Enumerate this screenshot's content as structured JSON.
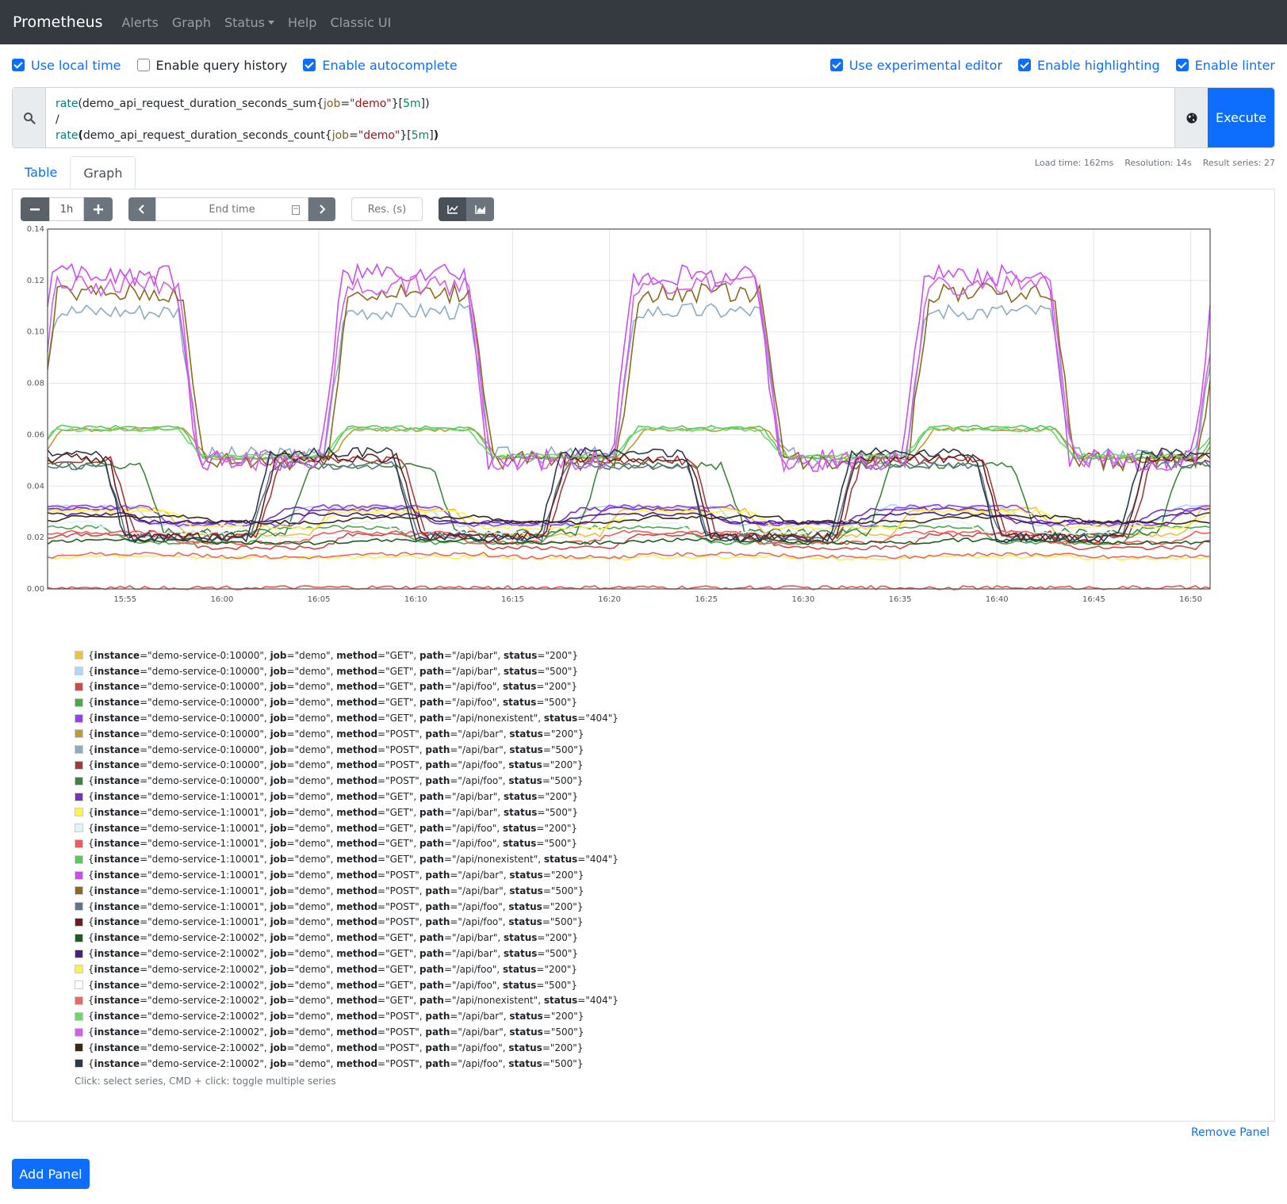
{
  "navbar": {
    "brand": "Prometheus",
    "links": [
      "Alerts",
      "Graph",
      "Status",
      "Help",
      "Classic UI"
    ]
  },
  "options": {
    "left": [
      {
        "label": "Use local time",
        "checked": true
      },
      {
        "label": "Enable query history",
        "checked": false
      },
      {
        "label": "Enable autocomplete",
        "checked": true
      }
    ],
    "right": [
      {
        "label": "Use experimental editor",
        "checked": true
      },
      {
        "label": "Enable highlighting",
        "checked": true
      },
      {
        "label": "Enable linter",
        "checked": true
      }
    ]
  },
  "query": {
    "line1": {
      "fn": "rate",
      "metric": "demo_api_request_duration_seconds_sum",
      "label": "job",
      "value": "\"demo\"",
      "range": "5m"
    },
    "line2": "/",
    "line3": {
      "fn": "rate",
      "metric": "demo_api_request_duration_seconds_count",
      "label": "job",
      "value": "\"demo\"",
      "range": "5m"
    },
    "execute": "Execute"
  },
  "tabs": [
    "Table",
    "Graph"
  ],
  "active_tab": "Graph",
  "stats": {
    "load_time": "Load time: 162ms",
    "resolution": "Resolution: 14s",
    "result_series": "Result series: 27"
  },
  "controls": {
    "range": "1h",
    "end_time_placeholder": "End time",
    "res_placeholder": "Res. (s)"
  },
  "legend_hint": "Click: select series, CMD + click: toggle multiple series",
  "remove_panel": "Remove Panel",
  "add_panel": "Add Panel",
  "chart_data": {
    "type": "line",
    "ylim": [
      0,
      0.14
    ],
    "yticks": [
      "0.00",
      "0.02",
      "0.04",
      "0.06",
      "0.08",
      "0.10",
      "0.12",
      "0.14"
    ],
    "xlim": [
      "15:51",
      "16:51"
    ],
    "xticks": [
      "15:55",
      "16:00",
      "16:05",
      "16:10",
      "16:15",
      "16:20",
      "16:25",
      "16:30",
      "16:35",
      "16:40",
      "16:45",
      "16:50"
    ],
    "grid": true,
    "cycle_minutes": 7.5,
    "series": [
      {
        "labels": {
          "instance": "demo-service-0:10000",
          "job": "demo",
          "method": "GET",
          "path": "/api/bar",
          "status": "200"
        },
        "color": "#edc240",
        "low": 0.021,
        "high": 0.031,
        "phase": 0.2
      },
      {
        "labels": {
          "instance": "demo-service-0:10000",
          "job": "demo",
          "method": "GET",
          "path": "/api/bar",
          "status": "500"
        },
        "color": "#afd8f8",
        "low": 0.025,
        "high": 0.032,
        "phase": 0.4
      },
      {
        "labels": {
          "instance": "demo-service-0:10000",
          "job": "demo",
          "method": "GET",
          "path": "/api/foo",
          "status": "200"
        },
        "color": "#cb4b4b",
        "low": 0.016,
        "high": 0.021,
        "phase": 0.1
      },
      {
        "labels": {
          "instance": "demo-service-0:10000",
          "job": "demo",
          "method": "GET",
          "path": "/api/foo",
          "status": "500"
        },
        "color": "#4da74d",
        "low": 0.018,
        "high": 0.024,
        "phase": 0.6
      },
      {
        "labels": {
          "instance": "demo-service-0:10000",
          "job": "demo",
          "method": "GET",
          "path": "/api/nonexistent",
          "status": "404"
        },
        "color": "#9440ed",
        "low": 0.025,
        "high": 0.032,
        "phase": 0.3
      },
      {
        "labels": {
          "instance": "demo-service-0:10000",
          "job": "demo",
          "method": "POST",
          "path": "/api/bar",
          "status": "200"
        },
        "color": "#bd9b33",
        "low": 0.051,
        "high": 0.062,
        "phase": 0.05
      },
      {
        "labels": {
          "instance": "demo-service-0:10000",
          "job": "demo",
          "method": "POST",
          "path": "/api/bar",
          "status": "500"
        },
        "color": "#8cacc6",
        "low": 0.052,
        "high": 0.108,
        "phase": 0.1
      },
      {
        "labels": {
          "instance": "demo-service-0:10000",
          "job": "demo",
          "method": "POST",
          "path": "/api/foo",
          "status": "200"
        },
        "color": "#a23c3c",
        "low": 0.021,
        "high": 0.05,
        "phase": 0.55
      },
      {
        "labels": {
          "instance": "demo-service-0:10000",
          "job": "demo",
          "method": "POST",
          "path": "/api/foo",
          "status": "500"
        },
        "color": "#3d853d",
        "low": 0.022,
        "high": 0.048,
        "phase": 0.35
      },
      {
        "labels": {
          "instance": "demo-service-1:10001",
          "job": "demo",
          "method": "GET",
          "path": "/api/bar",
          "status": "200"
        },
        "color": "#7633bd",
        "low": 0.026,
        "high": 0.031,
        "phase": 0.5
      },
      {
        "labels": {
          "instance": "demo-service-1:10001",
          "job": "demo",
          "method": "GET",
          "path": "/api/bar",
          "status": "500"
        },
        "color": "#fff34e",
        "low": 0.024,
        "high": 0.03,
        "phase": 0.15
      },
      {
        "labels": {
          "instance": "demo-service-1:10001",
          "job": "demo",
          "method": "GET",
          "path": "/api/foo",
          "status": "200"
        },
        "color": "#e0f4f7",
        "low": 0.022,
        "high": 0.026,
        "phase": 0.7
      },
      {
        "labels": {
          "instance": "demo-service-1:10001",
          "job": "demo",
          "method": "GET",
          "path": "/api/foo",
          "status": "500"
        },
        "color": "#f05b5b",
        "low": 0.018,
        "high": 0.022,
        "phase": 0.25
      },
      {
        "labels": {
          "instance": "demo-service-1:10001",
          "job": "demo",
          "method": "GET",
          "path": "/api/nonexistent",
          "status": "404"
        },
        "color": "#5cc85c",
        "low": 0.051,
        "high": 0.063,
        "phase": 0.08
      },
      {
        "labels": {
          "instance": "demo-service-1:10001",
          "job": "demo",
          "method": "POST",
          "path": "/api/bar",
          "status": "200"
        },
        "color": "#c94fef",
        "low": 0.05,
        "high": 0.122,
        "phase": 0.12
      },
      {
        "labels": {
          "instance": "demo-service-1:10001",
          "job": "demo",
          "method": "POST",
          "path": "/api/bar",
          "status": "500"
        },
        "color": "#8b6a1f",
        "low": 0.05,
        "high": 0.115,
        "phase": 0.08
      },
      {
        "labels": {
          "instance": "demo-service-1:10001",
          "job": "demo",
          "method": "POST",
          "path": "/api/foo",
          "status": "200"
        },
        "color": "#5c7590",
        "low": 0.02,
        "high": 0.048,
        "phase": 0.6
      },
      {
        "labels": {
          "instance": "demo-service-1:10001",
          "job": "demo",
          "method": "POST",
          "path": "/api/foo",
          "status": "500"
        },
        "color": "#6d1f1f",
        "low": 0.02,
        "high": 0.051,
        "phase": 0.58
      },
      {
        "labels": {
          "instance": "demo-service-2:10002",
          "job": "demo",
          "method": "GET",
          "path": "/api/bar",
          "status": "200"
        },
        "color": "#1f5c1f",
        "low": 0.018,
        "high": 0.019,
        "phase": 0.0
      },
      {
        "labels": {
          "instance": "demo-service-2:10002",
          "job": "demo",
          "method": "GET",
          "path": "/api/bar",
          "status": "500"
        },
        "color": "#4b1f7a",
        "low": 0.026,
        "high": 0.029,
        "phase": 0.45
      },
      {
        "labels": {
          "instance": "demo-service-2:10002",
          "job": "demo",
          "method": "GET",
          "path": "/api/foo",
          "status": "200"
        },
        "color": "#f8f05a",
        "low": 0.012,
        "high": 0.0125,
        "phase": 0.0
      },
      {
        "labels": {
          "instance": "demo-service-2:10002",
          "job": "demo",
          "method": "GET",
          "path": "/api/foo",
          "status": "500"
        },
        "color": "#ffffff",
        "low": 0.0005,
        "high": 0.0005,
        "phase": 0.0
      },
      {
        "labels": {
          "instance": "demo-service-2:10002",
          "job": "demo",
          "method": "GET",
          "path": "/api/nonexistent",
          "status": "404"
        },
        "color": "#e56a6a",
        "low": 0.0125,
        "high": 0.0135,
        "phase": 0.0
      },
      {
        "labels": {
          "instance": "demo-service-2:10002",
          "job": "demo",
          "method": "POST",
          "path": "/api/bar",
          "status": "200"
        },
        "color": "#6ad86a",
        "low": 0.052,
        "high": 0.062,
        "phase": 0.1
      },
      {
        "labels": {
          "instance": "demo-service-2:10002",
          "job": "demo",
          "method": "POST",
          "path": "/api/bar",
          "status": "500"
        },
        "color": "#d55fe8",
        "low": 0.05,
        "high": 0.118,
        "phase": 0.1
      },
      {
        "labels": {
          "instance": "demo-service-2:10002",
          "job": "demo",
          "method": "POST",
          "path": "/api/foo",
          "status": "200"
        },
        "color": "#3a2a10",
        "low": 0.026,
        "high": 0.028,
        "phase": 0.0
      },
      {
        "labels": {
          "instance": "demo-service-2:10002",
          "job": "demo",
          "method": "POST",
          "path": "/api/foo",
          "status": "500"
        },
        "color": "#2a3a4a",
        "low": 0.02,
        "high": 0.053,
        "phase": 0.62
      }
    ]
  }
}
